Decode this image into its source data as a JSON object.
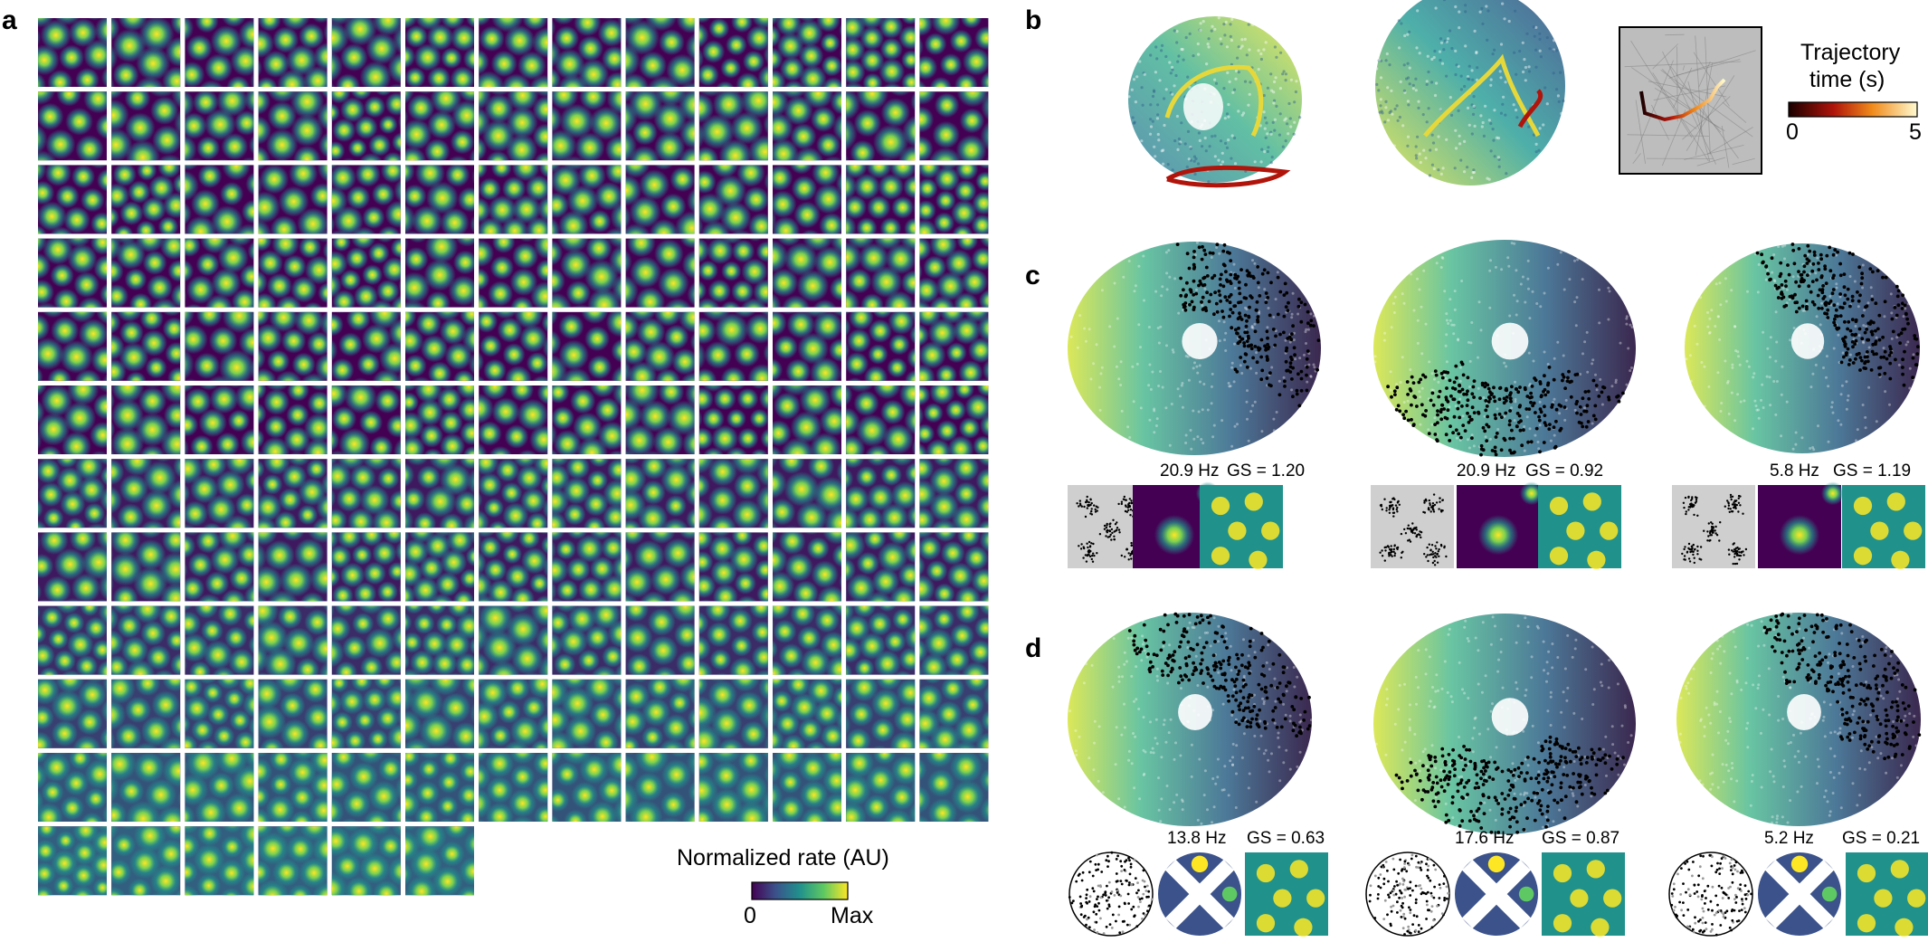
{
  "figure": {
    "panel_labels": {
      "a": "a",
      "b": "b",
      "c": "c",
      "d": "d"
    }
  },
  "panel_a": {
    "grid_rows_full": 11,
    "grid_cols": 13,
    "last_row_count": 6,
    "colorbar": {
      "title": "Normalized rate (AU)",
      "min_label": "0",
      "max_label": "Max"
    }
  },
  "panel_b": {
    "colorbar": {
      "title_line1": "Trajectory",
      "title_line2": "time (s)",
      "min_label": "0",
      "max_label": "5"
    }
  },
  "panel_c": {
    "cells": [
      {
        "rate": "20.9 Hz",
        "gs": "GS = 1.20"
      },
      {
        "rate": "20.9 Hz",
        "gs": "GS = 0.92"
      },
      {
        "rate": "5.8 Hz",
        "gs": "GS = 1.19"
      }
    ]
  },
  "panel_d": {
    "cells": [
      {
        "rate": "13.8 Hz",
        "gs": "GS = 0.63"
      },
      {
        "rate": "17.6 Hz",
        "gs": "GS = 0.87"
      },
      {
        "rate": "5.2 Hz",
        "gs": "GS = 0.21"
      }
    ]
  },
  "colors": {
    "viridis_dark": "#440154",
    "viridis_mid": "#21918c",
    "viridis_bright": "#fde725",
    "trajectory_dark": "#1a0000",
    "trajectory_red": "#c0150a",
    "trajectory_yellow": "#fff06a"
  }
}
